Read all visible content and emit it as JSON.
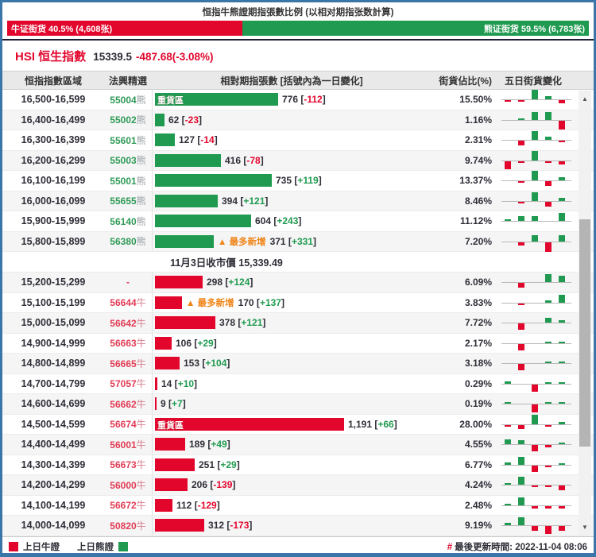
{
  "title": "恒指牛熊證期指張數比例 (以相对期指张数計算)",
  "gauge": {
    "bull_label": "牛证街货 40.5% (4,608张)",
    "bull_pct": 40.5,
    "bear_label": "熊证街货 59.5% (6,783张)",
    "bear_pct": 59.5
  },
  "index": {
    "name": "HSI 恒生指數",
    "price": "15339.5",
    "change": "-487.68(-3.08%)"
  },
  "table": {
    "headers": [
      "恒指指數區域",
      "法興精選",
      "相對期指張數 [括號內為一日變化]",
      "街貨佔比(%)",
      "五日街貨變化"
    ],
    "close_label": "11月3日收市價 15,339.49",
    "heavy_label": "重貨區",
    "most_new_label": "▲ 最多新增",
    "max_value": 1191,
    "bear_rows": [
      {
        "range": "16,500-16,599",
        "code": "55004",
        "suffix": "熊",
        "value": "776",
        "value_num": 776,
        "change": "-112",
        "pct": "15.50%",
        "tag": "heavy",
        "spark": [
          -0.6,
          -0.6,
          3,
          0.9,
          -0.9
        ]
      },
      {
        "range": "16,400-16,499",
        "code": "55002",
        "suffix": "熊",
        "value": "62",
        "value_num": 62,
        "change": "-23",
        "pct": "1.16%",
        "tag": null,
        "spark": [
          0,
          0.4,
          2.6,
          2.6,
          -2.8
        ]
      },
      {
        "range": "16,300-16,399",
        "code": "55601",
        "suffix": "熊",
        "value": "127",
        "value_num": 127,
        "change": "-14",
        "pct": "2.31%",
        "tag": null,
        "spark": [
          0,
          -1.4,
          2.8,
          0.9,
          -0.4
        ]
      },
      {
        "range": "16,200-16,299",
        "code": "55003",
        "suffix": "熊",
        "value": "416",
        "value_num": 416,
        "change": "-78",
        "pct": "9.74%",
        "tag": null,
        "spark": [
          -2.4,
          -0.5,
          2.9,
          -0.5,
          -0.9
        ]
      },
      {
        "range": "16,100-16,199",
        "code": "55001",
        "suffix": "熊",
        "value": "735",
        "value_num": 735,
        "change": "+119",
        "pct": "13.37%",
        "tag": null,
        "spark": [
          0,
          -0.5,
          2.9,
          -1.6,
          0.9
        ]
      },
      {
        "range": "16,000-16,099",
        "code": "55655",
        "suffix": "熊",
        "value": "394",
        "value_num": 394,
        "change": "+121",
        "pct": "8.46%",
        "tag": null,
        "spark": [
          0,
          -0.5,
          2.7,
          -1.5,
          0.9
        ]
      },
      {
        "range": "15,900-15,999",
        "code": "56140",
        "suffix": "熊",
        "value": "604",
        "value_num": 604,
        "change": "+243",
        "pct": "11.12%",
        "tag": null,
        "spark": [
          0.3,
          1.4,
          1.4,
          0,
          2.6
        ]
      },
      {
        "range": "15,800-15,899",
        "code": "56380",
        "suffix": "熊",
        "value": "371",
        "value_num": 371,
        "change": "+331",
        "pct": "7.20%",
        "tag": "most_new",
        "spark": [
          0,
          -0.9,
          1.9,
          -2.9,
          1.9
        ]
      }
    ],
    "bull_rows": [
      {
        "range": "15,200-15,299",
        "code": "-",
        "suffix": "",
        "value": "298",
        "value_num": 298,
        "change": "+124",
        "pct": "6.09%",
        "tag": null,
        "spark": [
          0,
          -1.5,
          0,
          2.4,
          2.0
        ]
      },
      {
        "range": "15,100-15,199",
        "code": "56644",
        "suffix": "牛",
        "value": "170",
        "value_num": 170,
        "change": "+137",
        "pct": "3.83%",
        "tag": "most_new",
        "spark": [
          0,
          -0.3,
          0,
          0.7,
          2.6
        ]
      },
      {
        "range": "15,000-15,099",
        "code": "56642",
        "suffix": "牛",
        "value": "378",
        "value_num": 378,
        "change": "+121",
        "pct": "7.72%",
        "tag": null,
        "spark": [
          0,
          -2.0,
          0,
          1.5,
          0.8
        ]
      },
      {
        "range": "14,900-14,999",
        "code": "56663",
        "suffix": "牛",
        "value": "106",
        "value_num": 106,
        "change": "+29",
        "pct": "2.17%",
        "tag": null,
        "spark": [
          0,
          -2.0,
          0,
          0.3,
          0.3
        ]
      },
      {
        "range": "14,800-14,899",
        "code": "56665",
        "suffix": "牛",
        "value": "153",
        "value_num": 153,
        "change": "+104",
        "pct": "3.18%",
        "tag": null,
        "spark": [
          0,
          -2.0,
          0,
          0.3,
          0.3
        ]
      },
      {
        "range": "14,700-14,799",
        "code": "57057",
        "suffix": "牛",
        "value": "14",
        "value_num": 14,
        "change": "+10",
        "pct": "0.29%",
        "tag": null,
        "spark": [
          0.8,
          0,
          -2.2,
          0.3,
          0.3
        ]
      },
      {
        "range": "14,600-14,699",
        "code": "56662",
        "suffix": "牛",
        "value": "9",
        "value_num": 9,
        "change": "+7",
        "pct": "0.19%",
        "tag": null,
        "spark": [
          0.6,
          0,
          -2.4,
          0.3,
          0.3
        ]
      },
      {
        "range": "14,500-14,599",
        "code": "56674",
        "suffix": "牛",
        "value": "1,191",
        "value_num": 1191,
        "change": "+66",
        "pct": "28.00%",
        "tag": "heavy",
        "spark": [
          -0.3,
          -1.3,
          2.9,
          -0.6,
          0.7
        ]
      },
      {
        "range": "14,400-14,499",
        "code": "56001",
        "suffix": "牛",
        "value": "189",
        "value_num": 189,
        "change": "+49",
        "pct": "4.55%",
        "tag": null,
        "spark": [
          1.6,
          1.3,
          -1.9,
          -0.8,
          0.5
        ]
      },
      {
        "range": "14,300-14,399",
        "code": "56673",
        "suffix": "牛",
        "value": "251",
        "value_num": 251,
        "change": "+29",
        "pct": "6.77%",
        "tag": null,
        "spark": [
          0.7,
          2.4,
          -1.9,
          -0.5,
          0.5
        ]
      },
      {
        "range": "14,200-14,299",
        "code": "56000",
        "suffix": "牛",
        "value": "206",
        "value_num": 206,
        "change": "-139",
        "pct": "4.24%",
        "tag": null,
        "spark": [
          0.6,
          2.4,
          -0.5,
          -0.5,
          -1.4
        ]
      },
      {
        "range": "14,100-14,199",
        "code": "56672",
        "suffix": "牛",
        "value": "112",
        "value_num": 112,
        "change": "-129",
        "pct": "2.48%",
        "tag": null,
        "spark": [
          0.6,
          2.6,
          -0.7,
          -0.7,
          -0.7
        ]
      },
      {
        "range": "14,000-14,099",
        "code": "50820",
        "suffix": "牛",
        "value": "312",
        "value_num": 312,
        "change": "-173",
        "pct": "9.19%",
        "tag": null,
        "spark": [
          0.7,
          2.6,
          -1.6,
          -2.6,
          -1.6
        ]
      }
    ]
  },
  "legend": {
    "bull": "上日牛證",
    "bear": "上日熊證"
  },
  "updated": {
    "prefix": "#",
    "text": "最後更新時間: 2022-11-04 08:06"
  },
  "scrollbar": {
    "up_icon": "▲",
    "down_icon": "▼"
  },
  "colors": {
    "bull_red": "#e2062c",
    "bear_green": "#1f9a50",
    "most_new_orange": "#f08519",
    "frame_blue": "#3a76a8"
  }
}
